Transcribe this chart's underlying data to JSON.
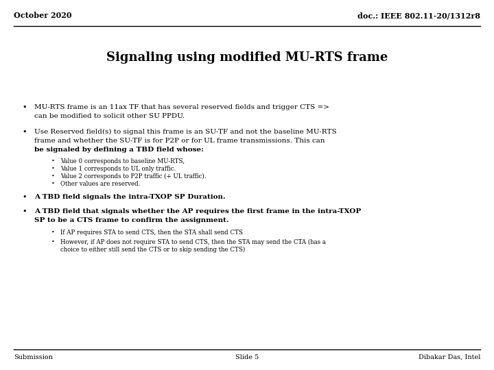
{
  "background_color": "#ffffff",
  "header_left": "October 2020",
  "header_right": "doc.: IEEE 802.11-20/1312r8",
  "title": "Signaling using modified MU-RTS frame",
  "footer_left": "Submission",
  "footer_center": "Slide 5",
  "footer_right": "Dibakar Das, Intel",
  "bullet1_line1": "MU-RTS frame is an 11ax TF that has several reserved fields and trigger CTS =>",
  "bullet1_line2": "can be modified to solicit other SU PPDU.",
  "bullet2_line1": "Use Reserved field(s) to signal this frame is an SU-TF and not the baseline MU-RTS",
  "bullet2_line2": "frame and whether the SU-TF is for P2P or for UL frame transmissions. This can",
  "bullet2_line3": "be signaled by defining a TBD field whose:",
  "sub_bullets": [
    "Value 0 corresponds to baseline MU-RTS,",
    "Value 1 corresponds to UL only traffic.",
    "Value 2 corresponds to P2P traffic (+ UL traffic).",
    "Other values are reserved."
  ],
  "bullet3": "A TBD field signals the intra-TXOP SP Duration.",
  "bullet4_line1": "A TBD field that signals whether the AP requires the first frame in the intra-TXOP",
  "bullet4_line2": "SP to be a CTS frame to confirm the assignment.",
  "sub_bullets2_line1": "If AP requires STA to send CTS, then the STA shall send CTS",
  "sub_bullets2_line2a": "However, if AP does not require STA to send CTS, then the STA may send the CTA (has a",
  "sub_bullets2_line2b": "choice to either still send the CTS or to skip sending the CTS)"
}
